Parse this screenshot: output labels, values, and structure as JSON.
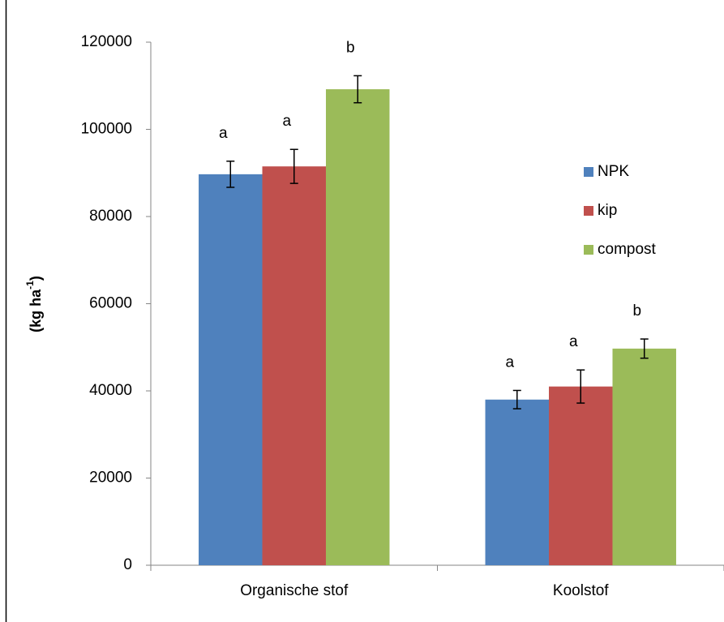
{
  "chart_data": {
    "type": "bar",
    "y_label": {
      "text": "(kg ha",
      "superscript": "-1",
      "suffix": ")"
    },
    "categories": [
      "Organische stof",
      "Koolstof"
    ],
    "series": [
      {
        "name": "NPK",
        "color": "#4f81bd",
        "values": [
          89700,
          38000
        ],
        "errors": [
          3000,
          2100
        ],
        "letters": [
          "a",
          "a"
        ]
      },
      {
        "name": "kip",
        "color": "#c0504d",
        "values": [
          91500,
          41000
        ],
        "errors": [
          3900,
          3800
        ],
        "letters": [
          "a",
          "a"
        ]
      },
      {
        "name": "compost",
        "color": "#9bbb59",
        "values": [
          109200,
          49700
        ],
        "errors": [
          3100,
          2200
        ],
        "letters": [
          "b",
          "b"
        ]
      }
    ],
    "ylim": [
      0,
      120000
    ],
    "yticks": [
      0,
      20000,
      40000,
      60000,
      80000,
      100000,
      120000
    ],
    "grid": false,
    "legend": "right"
  }
}
